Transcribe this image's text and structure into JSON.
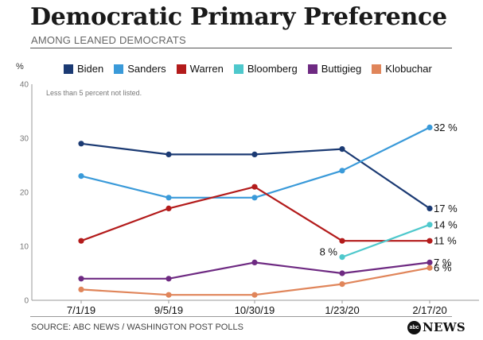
{
  "header": {
    "title": "Democratic Primary Preference",
    "subtitle": "AMONG LEANED DEMOCRATS"
  },
  "footer": {
    "source": "SOURCE: ABC NEWS / WASHINGTON POST POLLS",
    "logo_text": "NEWS",
    "logo_mark": "abc"
  },
  "chart_data": {
    "type": "line",
    "title": "Democratic Primary Preference",
    "subtitle": "AMONG LEANED DEMOCRATS",
    "y_unit_label": "%",
    "note": "Less than 5 percent not listed.",
    "categories": [
      "7/1/19",
      "9/5/19",
      "10/30/19",
      "1/23/20",
      "2/17/20"
    ],
    "ylim": [
      0,
      40
    ],
    "yticks": [
      0,
      10,
      20,
      30,
      40
    ],
    "grid": false,
    "legend_position": "top",
    "series": [
      {
        "name": "Biden",
        "color": "#1b3a73",
        "values": [
          29,
          27,
          27,
          28,
          17
        ],
        "end_label": "17 %"
      },
      {
        "name": "Sanders",
        "color": "#3a9ad9",
        "values": [
          23,
          19,
          19,
          24,
          32
        ],
        "end_label": "32 %"
      },
      {
        "name": "Warren",
        "color": "#b31b1b",
        "values": [
          11,
          17,
          21,
          11,
          11
        ],
        "end_label": "11 %"
      },
      {
        "name": "Bloomberg",
        "color": "#4ec8cc",
        "values": [
          null,
          null,
          null,
          8,
          14
        ],
        "end_label": "14 %",
        "start_label": "8 %"
      },
      {
        "name": "Buttigieg",
        "color": "#6e2a82",
        "values": [
          4,
          4,
          7,
          5,
          7
        ],
        "end_label": "7 %"
      },
      {
        "name": "Klobuchar",
        "color": "#e0855a",
        "values": [
          2,
          1,
          1,
          3,
          6
        ],
        "end_label": "6 %"
      }
    ]
  }
}
